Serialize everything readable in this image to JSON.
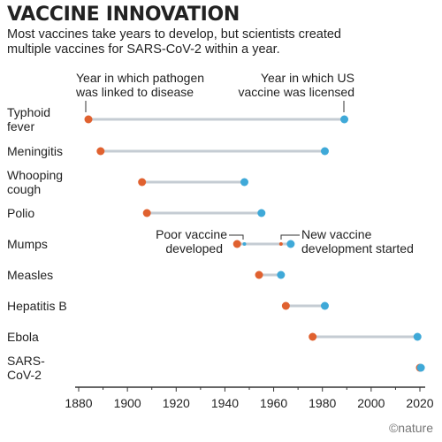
{
  "header": {
    "title": "VACCINE INNOVATION",
    "subtitle_line1": "Most vaccines take years to develop, but scientists created",
    "subtitle_line2": "multiple vaccines for SARS-CoV-2 within a year."
  },
  "legend": {
    "linked_line1": "Year in which pathogen",
    "linked_line2": "was linked to disease",
    "licensed_line1": "Year in which US",
    "licensed_line2": "vaccine was licensed"
  },
  "annotations": {
    "poor_line1": "Poor vaccine",
    "poor_line2": "developed",
    "new_line1": "New vaccine",
    "new_line2": "development started"
  },
  "credit": "©nature",
  "colors": {
    "linked": "#e0612f",
    "licensed": "#3fa9d8",
    "connector": "#c5ccd3",
    "axis": "#333333"
  },
  "chart_data": {
    "type": "dumbbell",
    "xlim": [
      1880,
      2020
    ],
    "xticks": [
      "1880",
      "1900",
      "1920",
      "1940",
      "1960",
      "1980",
      "2000",
      "2020"
    ],
    "diseases": [
      {
        "label_lines": [
          "Typhoid",
          "fever"
        ],
        "linked": 1884,
        "licensed": 1989
      },
      {
        "label_lines": [
          "Meningitis"
        ],
        "linked": 1889,
        "licensed": 1981
      },
      {
        "label_lines": [
          "Whooping",
          "cough"
        ],
        "linked": 1906,
        "licensed": 1948
      },
      {
        "label_lines": [
          "Polio"
        ],
        "linked": 1908,
        "licensed": 1955
      },
      {
        "label_lines": [
          "Mumps"
        ],
        "linked": 1945,
        "licensed": 1967,
        "poor_vaccine": 1948,
        "new_development": 1963
      },
      {
        "label_lines": [
          "Measles"
        ],
        "linked": 1954,
        "licensed": 1963
      },
      {
        "label_lines": [
          "Hepatitis B"
        ],
        "linked": 1965,
        "licensed": 1981
      },
      {
        "label_lines": [
          "Ebola"
        ],
        "linked": 1976,
        "licensed": 2019
      },
      {
        "label_lines": [
          "SARS-",
          "CoV-2"
        ],
        "linked": 2020,
        "licensed": 2020.4
      }
    ]
  }
}
